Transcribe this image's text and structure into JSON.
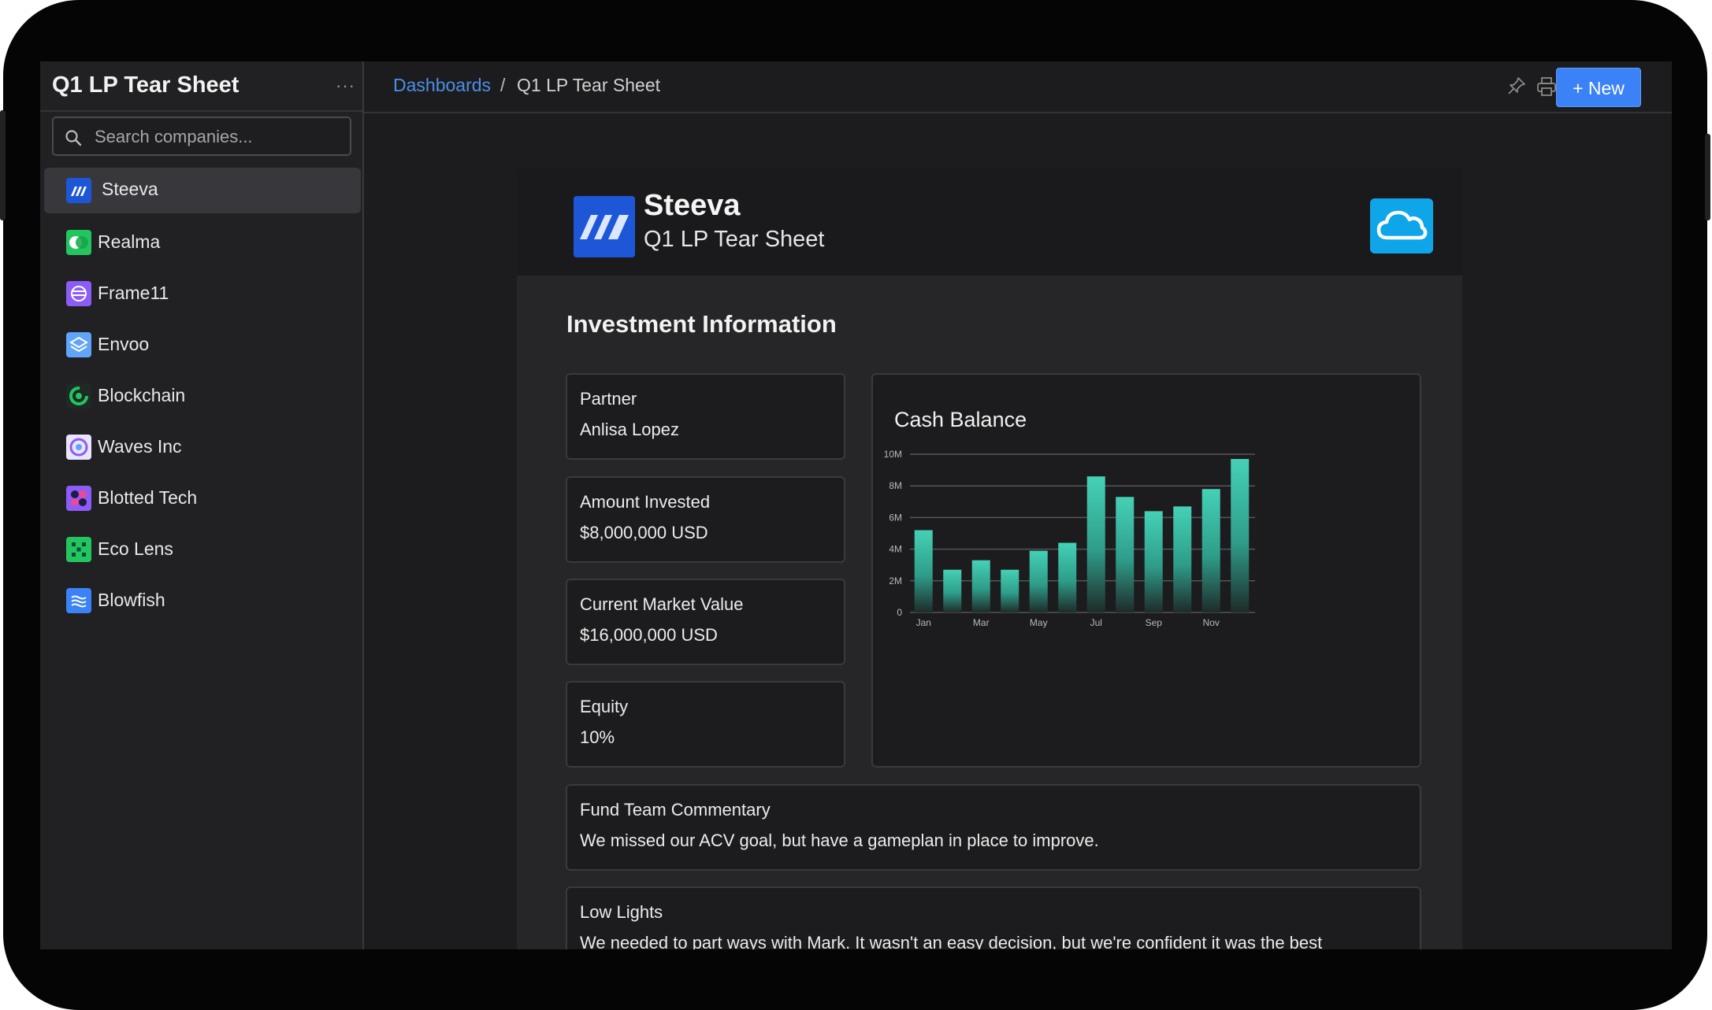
{
  "sidebar": {
    "title": "Q1 LP Tear Sheet",
    "more": "···",
    "search_placeholder": "Search companies...",
    "items": [
      {
        "label": "Steeva",
        "icon": "steeva-logo",
        "color": "#1e56d8",
        "active": true
      },
      {
        "label": "Realma",
        "icon": "realma-logo",
        "color": "#22c55e"
      },
      {
        "label": "Frame11",
        "icon": "frame11-logo",
        "color": "#8b5cf6"
      },
      {
        "label": "Envoo",
        "icon": "envoo-logo",
        "color": "#60a5fa"
      },
      {
        "label": "Blockchain",
        "icon": "blockchain-logo",
        "color": "#16a34a"
      },
      {
        "label": "Waves Inc",
        "icon": "waves-logo",
        "color": "#c4b5fd"
      },
      {
        "label": "Blotted Tech",
        "icon": "blotted-logo",
        "color": "#8b5cf6"
      },
      {
        "label": "Eco Lens",
        "icon": "ecolens-logo",
        "color": "#22c55e"
      },
      {
        "label": "Blowfish",
        "icon": "blowfish-logo",
        "color": "#3b82f6"
      }
    ]
  },
  "topbar": {
    "breadcrumb_link": "Dashboards",
    "breadcrumb_sep": "/",
    "breadcrumb_current": "Q1 LP Tear Sheet",
    "new_button": "+ New"
  },
  "document": {
    "company": "Steeva",
    "subtitle": "Q1 LP Tear Sheet",
    "section_title": "Investment Information",
    "fields": [
      {
        "label": "Partner",
        "value": "Anlisa Lopez"
      },
      {
        "label": "Amount Invested",
        "value": "$8,000,000 USD"
      },
      {
        "label": "Current Market Value",
        "value": "$16,000,000 USD"
      },
      {
        "label": "Equity",
        "value": "10%"
      }
    ],
    "commentary": {
      "label": "Fund Team Commentary",
      "value": "We missed our ACV goal, but have a gameplan in place to improve."
    },
    "lowlights": {
      "label": "Low Lights",
      "value": "We needed to part ways with Mark. It wasn't an easy decision, but we're confident it was the best"
    }
  },
  "colors": {
    "accent": "#3b82f6",
    "link": "#4b8fe8",
    "bar_top": "#3fc9b0",
    "bar_bottom": "#1c2a28"
  },
  "chart_data": {
    "type": "bar",
    "title": "Cash Balance",
    "categories": [
      "Jan",
      "Feb",
      "Mar",
      "Apr",
      "May",
      "Jun",
      "Jul",
      "Aug",
      "Sep",
      "Oct",
      "Nov",
      "Dec"
    ],
    "x_tick_labels": [
      "Jan",
      "",
      "Mar",
      "",
      "May",
      "",
      "Jul",
      "",
      "Sep",
      "",
      "Nov",
      ""
    ],
    "values": [
      5200000,
      2700000,
      3300000,
      2700000,
      3900000,
      4400000,
      8600000,
      7300000,
      6400000,
      6700000,
      7800000,
      9700000
    ],
    "ylim": [
      0,
      10000000
    ],
    "y_ticks": [
      0,
      2000000,
      4000000,
      6000000,
      8000000,
      10000000
    ],
    "y_tick_labels": [
      "0",
      "2M",
      "4M",
      "6M",
      "8M",
      "10M"
    ],
    "grid": true,
    "xlabel": "",
    "ylabel": ""
  }
}
